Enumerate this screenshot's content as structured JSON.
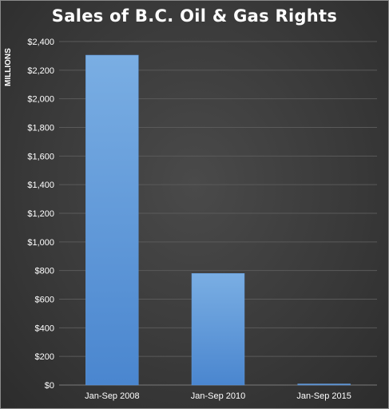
{
  "chart_data": {
    "type": "bar",
    "title": "Sales of B.C. Oil & Gas Rights",
    "ylabel": "MILLIONS",
    "xlabel": "",
    "categories": [
      "Jan-Sep 2008",
      "Jan-Sep 2010",
      "Jan-Sep 2015"
    ],
    "values": [
      2305,
      780,
      8
    ],
    "ylim": [
      0,
      2400
    ],
    "yticks": [
      0,
      200,
      400,
      600,
      800,
      1000,
      1200,
      1400,
      1600,
      1800,
      2000,
      2200,
      2400
    ],
    "ytick_labels": [
      "$0",
      "$200",
      "$400",
      "$600",
      "$800",
      "$1,000",
      "$1,200",
      "$1,400",
      "$1,600",
      "$1,800",
      "$2,000",
      "$2,200",
      "$2,400"
    ],
    "grid": true,
    "legend": "none"
  },
  "colors": {
    "bar_top": "#7aaee3",
    "bar_bottom": "#4a86cf",
    "grid": "#5a5a5a",
    "text": "#ffffff"
  }
}
